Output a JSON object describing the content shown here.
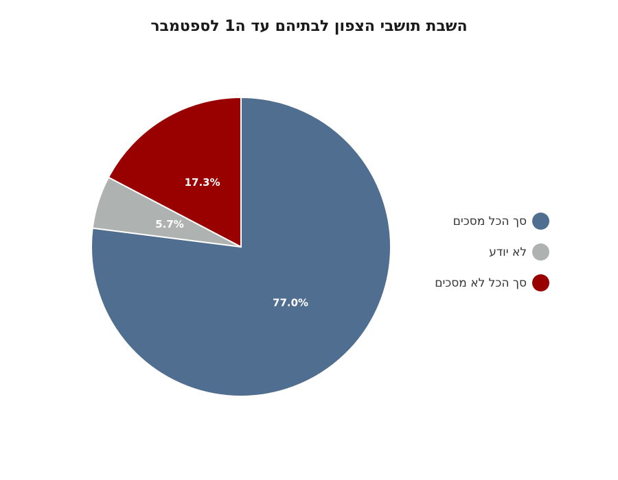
{
  "chart_data": {
    "type": "pie",
    "title": "השבת תושבי הצפון לבתיהם עד ה1 לספטמבר",
    "slices": [
      {
        "label": "סך הכל מסכים",
        "value": 77.0,
        "display": "77.0%",
        "color": "#506e8f"
      },
      {
        "label": "לא יודע",
        "value": 5.7,
        "display": "5.7%",
        "color": "#aeb3b2"
      },
      {
        "label": "סך הכל לא מסכים",
        "value": 17.3,
        "display": "17.3%",
        "color": "#990000"
      }
    ],
    "legend_position": "right"
  }
}
